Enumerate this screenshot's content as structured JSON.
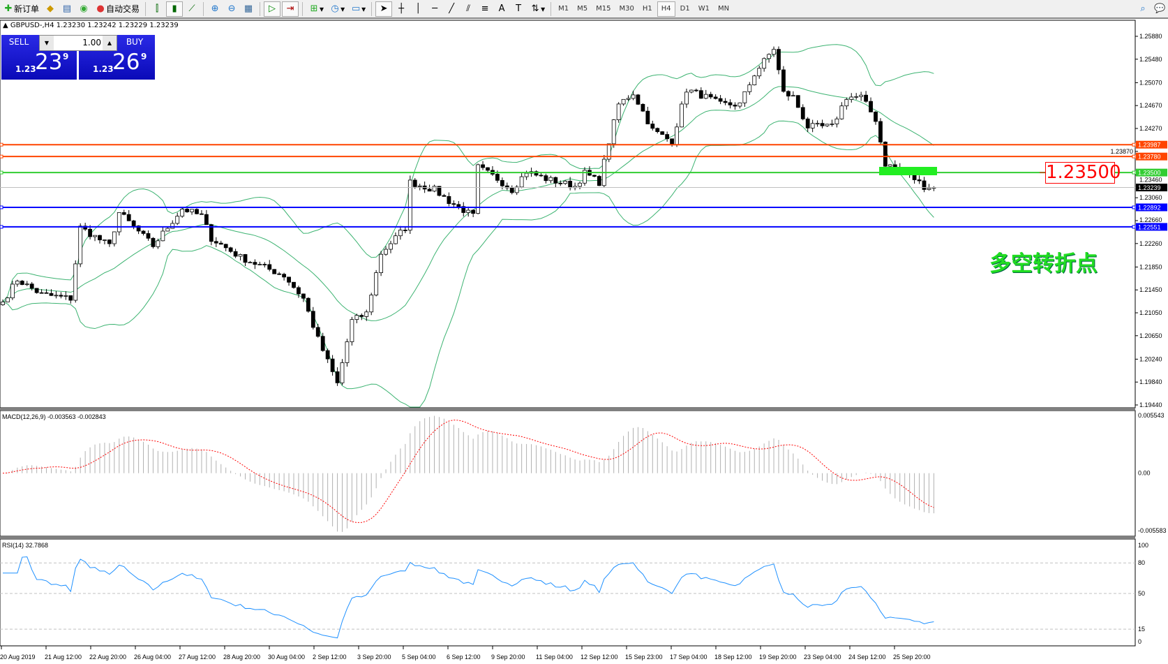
{
  "toolbar": {
    "new_order": "新订单",
    "auto_trading": "自动交易",
    "timeframes": [
      "M1",
      "M5",
      "M15",
      "M30",
      "H1",
      "H4",
      "D1",
      "W1",
      "MN"
    ],
    "active_timeframe": "H4",
    "icons": [
      "new-order-icon",
      "market-watch-icon",
      "navigator-icon",
      "signals-icon",
      "auto-trading-icon",
      "bar-chart-icon",
      "candlestick-icon",
      "line-chart-icon",
      "zoom-in-icon",
      "zoom-out-icon",
      "tile-windows-icon",
      "autoscroll-icon",
      "chart-shift-icon",
      "indicators-icon",
      "periods-icon",
      "templates-icon",
      "cursor-icon",
      "crosshair-icon",
      "vertical-line-icon",
      "horizontal-line-icon",
      "trendline-icon",
      "equidistant-channel-icon",
      "fibonacci-icon",
      "text-icon",
      "text-label-icon",
      "arrows-icon",
      "search-icon",
      "chat-icon"
    ]
  },
  "symbol_line": "GBPUSD-,H4  1.23230 1.23242 1.23229 1.23239",
  "trade_panel": {
    "sell_label": "SELL",
    "buy_label": "BUY",
    "lot": "1.00",
    "sell_prefix": "1.23",
    "sell_big": "23",
    "sell_sup": "9",
    "buy_prefix": "1.23",
    "buy_big": "26",
    "buy_sup": "9",
    "color": "#1a1ad8"
  },
  "annotations": {
    "pivot_text": "多空转折点",
    "pivot_price": "1.23500",
    "pivot_color": "#22dd22"
  },
  "chart_data": {
    "type": "candlestick",
    "symbol": "GBPUSD-",
    "timeframe": "H4",
    "ylim": [
      1.1944,
      1.2588
    ],
    "price_ticks": [
      "1.25880",
      "1.25480",
      "1.25070",
      "1.24670",
      "1.24270",
      "1.23870",
      "1.23460",
      "1.23060",
      "1.22660",
      "1.22260",
      "1.21850",
      "1.21450",
      "1.21050",
      "1.20650",
      "1.20240",
      "1.19840",
      "1.19440"
    ],
    "current_price": "1.23239",
    "levels": [
      {
        "price": "1.23987",
        "color": "#ff4500"
      },
      {
        "price": "1.23780",
        "color": "#ff4500"
      },
      {
        "price": "1.23500",
        "color": "#32cd32"
      },
      {
        "price": "1.22892",
        "color": "#0000ff"
      },
      {
        "price": "1.22551",
        "color": "#0000ff"
      }
    ],
    "price_path": [
      [
        0,
        1.2124
      ],
      [
        3,
        1.2163
      ],
      [
        8,
        1.2137
      ],
      [
        14,
        1.213
      ],
      [
        16,
        1.2254
      ],
      [
        22,
        1.2222
      ],
      [
        24,
        1.228
      ],
      [
        31,
        1.2222
      ],
      [
        37,
        1.2287
      ],
      [
        41,
        1.2274
      ],
      [
        43,
        1.2235
      ],
      [
        49,
        1.2202
      ],
      [
        58,
        1.217
      ],
      [
        62,
        1.213
      ],
      [
        65,
        1.2059
      ],
      [
        69,
        1.1981
      ],
      [
        72,
        1.2091
      ],
      [
        75,
        1.2104
      ],
      [
        78,
        1.2209
      ],
      [
        83,
        1.2254
      ],
      [
        84,
        1.2333
      ],
      [
        89,
        1.232
      ],
      [
        92,
        1.23
      ],
      [
        97,
        1.2274
      ],
      [
        98,
        1.2359
      ],
      [
        102,
        1.2339
      ],
      [
        105,
        1.232
      ],
      [
        108,
        1.2352
      ],
      [
        112,
        1.2339
      ],
      [
        118,
        1.2326
      ],
      [
        120,
        1.2349
      ],
      [
        123,
        1.2333
      ],
      [
        125,
        1.2404
      ],
      [
        127,
        1.2469
      ],
      [
        130,
        1.2489
      ],
      [
        134,
        1.2424
      ],
      [
        138,
        1.2404
      ],
      [
        141,
        1.2495
      ],
      [
        145,
        1.2482
      ],
      [
        148,
        1.2469
      ],
      [
        152,
        1.2469
      ],
      [
        155,
        1.2522
      ],
      [
        159,
        1.2567
      ],
      [
        161,
        1.2489
      ],
      [
        163,
        1.2482
      ],
      [
        166,
        1.243
      ],
      [
        171,
        1.243
      ],
      [
        174,
        1.2482
      ],
      [
        177,
        1.2482
      ],
      [
        180,
        1.2443
      ],
      [
        182,
        1.2365
      ],
      [
        186,
        1.2352
      ],
      [
        190,
        1.2326
      ],
      [
        192,
        1.23239
      ]
    ],
    "indicators": {
      "bollinger": {
        "color": "#3cb371"
      },
      "macd": {
        "label": "MACD(12,26,9) -0.003563 -0.002843",
        "ticks": [
          "0.005543",
          "0.00",
          "-0.005583"
        ],
        "ylim": [
          -0.005583,
          0.005543
        ],
        "signal_color": "#ff0000",
        "hist_color": "#b0b0b0"
      },
      "rsi": {
        "label": "RSI(14) 32.7868",
        "ticks": [
          "100",
          "80",
          "50",
          "15",
          "0"
        ],
        "levels": [
          80,
          50,
          15
        ],
        "color": "#1e90ff"
      }
    },
    "time_labels": [
      "20 Aug 2019",
      "21 Aug 12:00",
      "22 Aug 20:00",
      "26 Aug 04:00",
      "27 Aug 12:00",
      "28 Aug 20:00",
      "30 Aug 04:00",
      "2 Sep 12:00",
      "3 Sep 20:00",
      "5 Sep 04:00",
      "6 Sep 12:00",
      "9 Sep 20:00",
      "11 Sep 04:00",
      "12 Sep 12:00",
      "15 Sep 23:00",
      "17 Sep 04:00",
      "18 Sep 12:00",
      "19 Sep 20:00",
      "23 Sep 04:00",
      "24 Sep 12:00",
      "25 Sep 20:00"
    ]
  }
}
